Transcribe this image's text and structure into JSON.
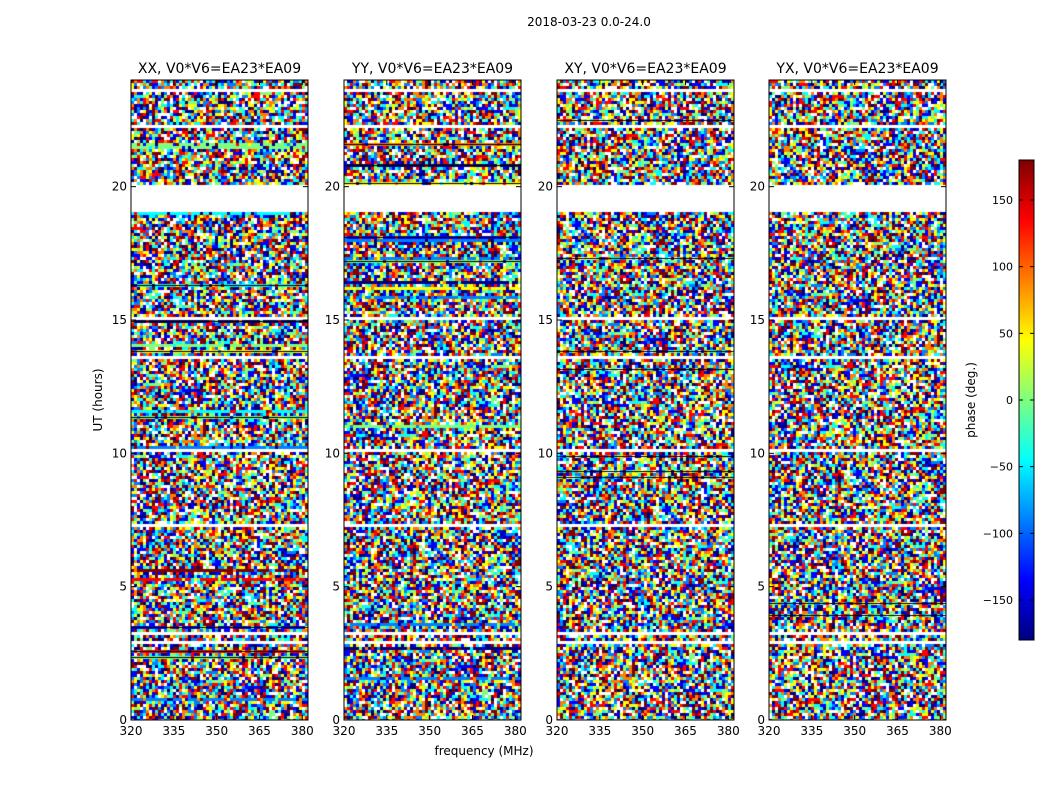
{
  "figure_title": "2018-03-23 0.0-24.0",
  "chart_data": {
    "type": "heatmap",
    "suptitle": "2018-03-23 0.0-24.0",
    "xlabel": "frequency (MHz)",
    "ylabel": "UT (hours)",
    "xlim": [
      320,
      382
    ],
    "ylim": [
      0,
      24
    ],
    "xticks": [
      320,
      335,
      350,
      365,
      380
    ],
    "yticks": [
      0,
      5,
      10,
      15,
      20
    ],
    "panels": [
      {
        "title": "XX, V0*V6=EA23*EA09",
        "polarization": "XX"
      },
      {
        "title": "YY, V0*V6=EA23*EA09",
        "polarization": "YY"
      },
      {
        "title": "XY, V0*V6=EA23*EA09",
        "polarization": "XY"
      },
      {
        "title": "YX, V0*V6=EA23*EA09",
        "polarization": "YX"
      }
    ],
    "gaps_hours": [
      [
        19.0,
        20.1
      ],
      [
        3.2,
        3.35
      ],
      [
        7.25,
        7.4
      ],
      [
        9.1,
        9.2
      ],
      [
        2.9,
        3.0
      ],
      [
        1.25,
        1.3
      ],
      [
        15.0,
        15.08
      ],
      [
        17.0,
        17.05
      ],
      [
        10.1,
        10.18
      ],
      [
        13.55,
        13.62
      ],
      [
        22.2,
        22.3
      ],
      [
        23.6,
        23.7
      ]
    ],
    "colorbar": {
      "label": "phase (deg.)",
      "range": [
        -180,
        180
      ],
      "ticks": [
        -150,
        -100,
        -50,
        0,
        50,
        100,
        150
      ],
      "tick_labels": [
        "−150",
        "−100",
        "−50",
        "0",
        "50",
        "100",
        "150"
      ],
      "colormap": [
        "#00007f",
        "#0000ff",
        "#007fff",
        "#00ffff",
        "#7fff7f",
        "#ffff00",
        "#ff7f00",
        "#ff0000",
        "#7f0000"
      ]
    }
  }
}
